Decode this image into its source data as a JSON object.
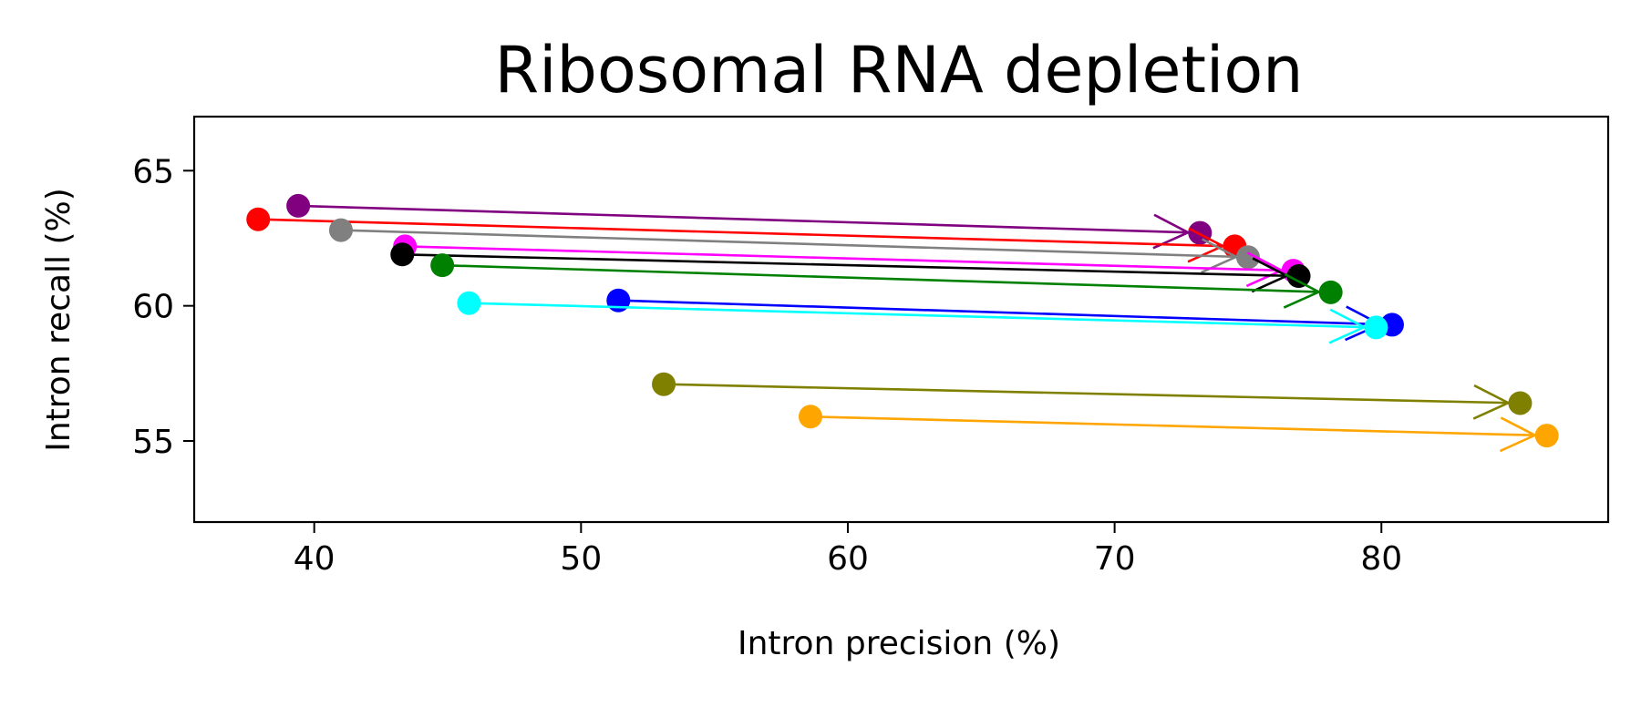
{
  "chart_data": {
    "type": "scatter",
    "title": "Ribosomal RNA depletion",
    "xlabel": "Intron precision (%)",
    "ylabel": "Intron recall (%)",
    "xlim": [
      35.5,
      88.5
    ],
    "ylim": [
      52,
      67
    ],
    "x_ticks": [
      40,
      50,
      60,
      70,
      80
    ],
    "y_ticks": [
      55,
      60,
      65
    ],
    "grid": false,
    "legend": "none",
    "series": [
      {
        "color": "#800080",
        "start": {
          "x": 39.4,
          "y": 63.7
        },
        "end": {
          "x": 73.2,
          "y": 62.7
        }
      },
      {
        "color": "#ff0000",
        "start": {
          "x": 37.9,
          "y": 63.2
        },
        "end": {
          "x": 74.5,
          "y": 62.2
        }
      },
      {
        "color": "#808080",
        "start": {
          "x": 41.0,
          "y": 62.8
        },
        "end": {
          "x": 75.0,
          "y": 61.8
        }
      },
      {
        "color": "#ff00ff",
        "start": {
          "x": 43.4,
          "y": 62.2
        },
        "end": {
          "x": 76.7,
          "y": 61.3
        }
      },
      {
        "color": "#000000",
        "start": {
          "x": 43.3,
          "y": 61.9
        },
        "end": {
          "x": 76.9,
          "y": 61.1
        }
      },
      {
        "color": "#008000",
        "start": {
          "x": 44.8,
          "y": 61.5
        },
        "end": {
          "x": 78.1,
          "y": 60.5
        }
      },
      {
        "color": "#0000ff",
        "start": {
          "x": 51.4,
          "y": 60.2
        },
        "end": {
          "x": 80.4,
          "y": 59.3
        }
      },
      {
        "color": "#00ffff",
        "start": {
          "x": 45.8,
          "y": 60.1
        },
        "end": {
          "x": 79.8,
          "y": 59.2
        }
      },
      {
        "color": "#808000",
        "start": {
          "x": 53.1,
          "y": 57.1
        },
        "end": {
          "x": 85.2,
          "y": 56.4
        }
      },
      {
        "color": "#ffa500",
        "start": {
          "x": 58.6,
          "y": 55.9
        },
        "end": {
          "x": 86.2,
          "y": 55.2
        }
      }
    ]
  }
}
